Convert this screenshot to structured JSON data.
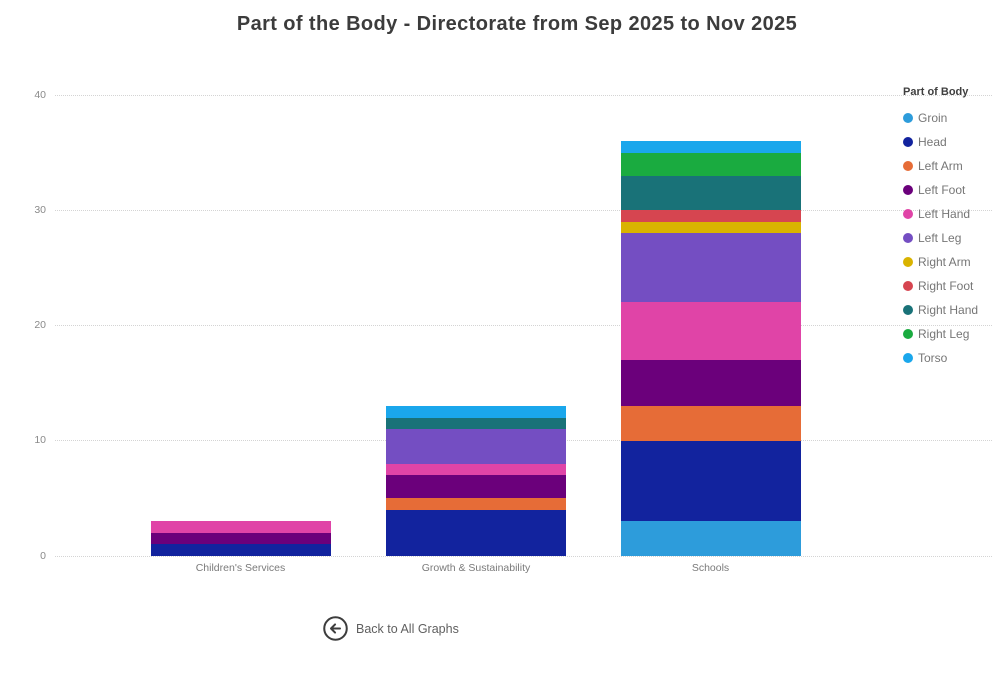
{
  "chart_data": {
    "type": "bar",
    "stacked": true,
    "title": "Part of the Body - Directorate from Sep 2025 to Nov 2025",
    "xlabel": "",
    "ylabel": "",
    "ylim": [
      0,
      40
    ],
    "y_ticks": [
      0,
      10,
      20,
      30,
      40
    ],
    "grid": true,
    "legend_position": "right",
    "legend_title": "Part of Body",
    "categories": [
      "Children's Services",
      "Growth & Sustainability",
      "Schools"
    ],
    "series": [
      {
        "name": "Groin",
        "color": "#2D9CDB",
        "values": [
          0,
          0,
          3
        ]
      },
      {
        "name": "Head",
        "color": "#12239E",
        "values": [
          1,
          4,
          7
        ]
      },
      {
        "name": "Left Arm",
        "color": "#E66C37",
        "values": [
          0,
          1,
          3
        ]
      },
      {
        "name": "Left Foot",
        "color": "#6B007B",
        "values": [
          1,
          2,
          4
        ]
      },
      {
        "name": "Left Hand",
        "color": "#E044A7",
        "values": [
          1,
          1,
          5
        ]
      },
      {
        "name": "Left Leg",
        "color": "#744EC2",
        "values": [
          0,
          3,
          6
        ]
      },
      {
        "name": "Right Arm",
        "color": "#D9B300",
        "values": [
          0,
          0,
          1
        ]
      },
      {
        "name": "Right Foot",
        "color": "#D64550",
        "values": [
          0,
          0,
          1
        ]
      },
      {
        "name": "Right Hand",
        "color": "#197278",
        "values": [
          0,
          1,
          3
        ]
      },
      {
        "name": "Right Leg",
        "color": "#1AAB40",
        "values": [
          0,
          0,
          2
        ]
      },
      {
        "name": "Torso",
        "color": "#1AA7EC",
        "values": [
          0,
          1,
          1
        ]
      }
    ],
    "category_totals": [
      3,
      13,
      36
    ]
  },
  "footer": {
    "back_label": "Back to All Graphs"
  }
}
